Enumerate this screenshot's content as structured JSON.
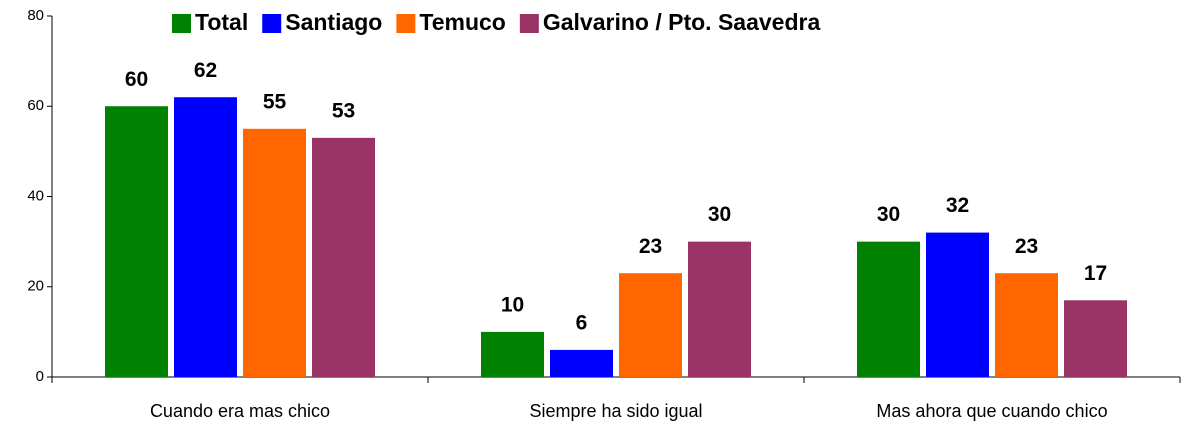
{
  "chart_data": {
    "type": "bar",
    "categories": [
      "Cuando era mas chico",
      "Siempre ha sido igual",
      "Mas ahora que cuando chico"
    ],
    "series": [
      {
        "name": "Total",
        "color": "#008000",
        "values": [
          60,
          10,
          30
        ]
      },
      {
        "name": "Santiago",
        "color": "#0000ff",
        "values": [
          62,
          6,
          32
        ]
      },
      {
        "name": "Temuco",
        "color": "#ff6600",
        "values": [
          55,
          23,
          23
        ]
      },
      {
        "name": "Galvarino / Pto. Saavedra",
        "color": "#993366",
        "values": [
          53,
          30,
          17
        ]
      }
    ],
    "ylim": [
      0,
      80
    ],
    "yticks": [
      0,
      20,
      40,
      60,
      80
    ],
    "legend": "top",
    "grid": false
  }
}
